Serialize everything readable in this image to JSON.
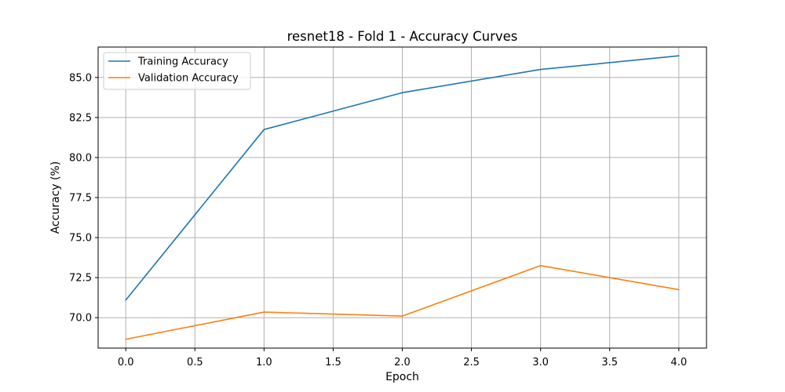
{
  "chart_data": {
    "type": "line",
    "title": "resnet18 - Fold 1 - Accuracy Curves",
    "xlabel": "Epoch",
    "ylabel": "Accuracy (%)",
    "x": [
      0,
      1,
      2,
      3,
      4
    ],
    "xlim": [
      -0.2,
      4.2
    ],
    "ylim": [
      68.1,
      86.9
    ],
    "xticks": [
      0.0,
      0.5,
      1.0,
      1.5,
      2.0,
      2.5,
      3.0,
      3.5,
      4.0
    ],
    "xtick_labels": [
      "0.0",
      "0.5",
      "1.0",
      "1.5",
      "2.0",
      "2.5",
      "3.0",
      "3.5",
      "4.0"
    ],
    "yticks": [
      70.0,
      72.5,
      75.0,
      77.5,
      80.0,
      82.5,
      85.0
    ],
    "ytick_labels": [
      "70.0",
      "72.5",
      "75.0",
      "77.5",
      "80.0",
      "82.5",
      "85.0"
    ],
    "grid": true,
    "legend_position": "top-left",
    "series": [
      {
        "name": "Training Accuracy",
        "color": "#1f77b4",
        "values": [
          71.1,
          81.75,
          84.05,
          85.5,
          86.35
        ]
      },
      {
        "name": "Validation Accuracy",
        "color": "#ff7f0e",
        "values": [
          68.65,
          70.35,
          70.1,
          73.25,
          71.75
        ]
      }
    ]
  }
}
